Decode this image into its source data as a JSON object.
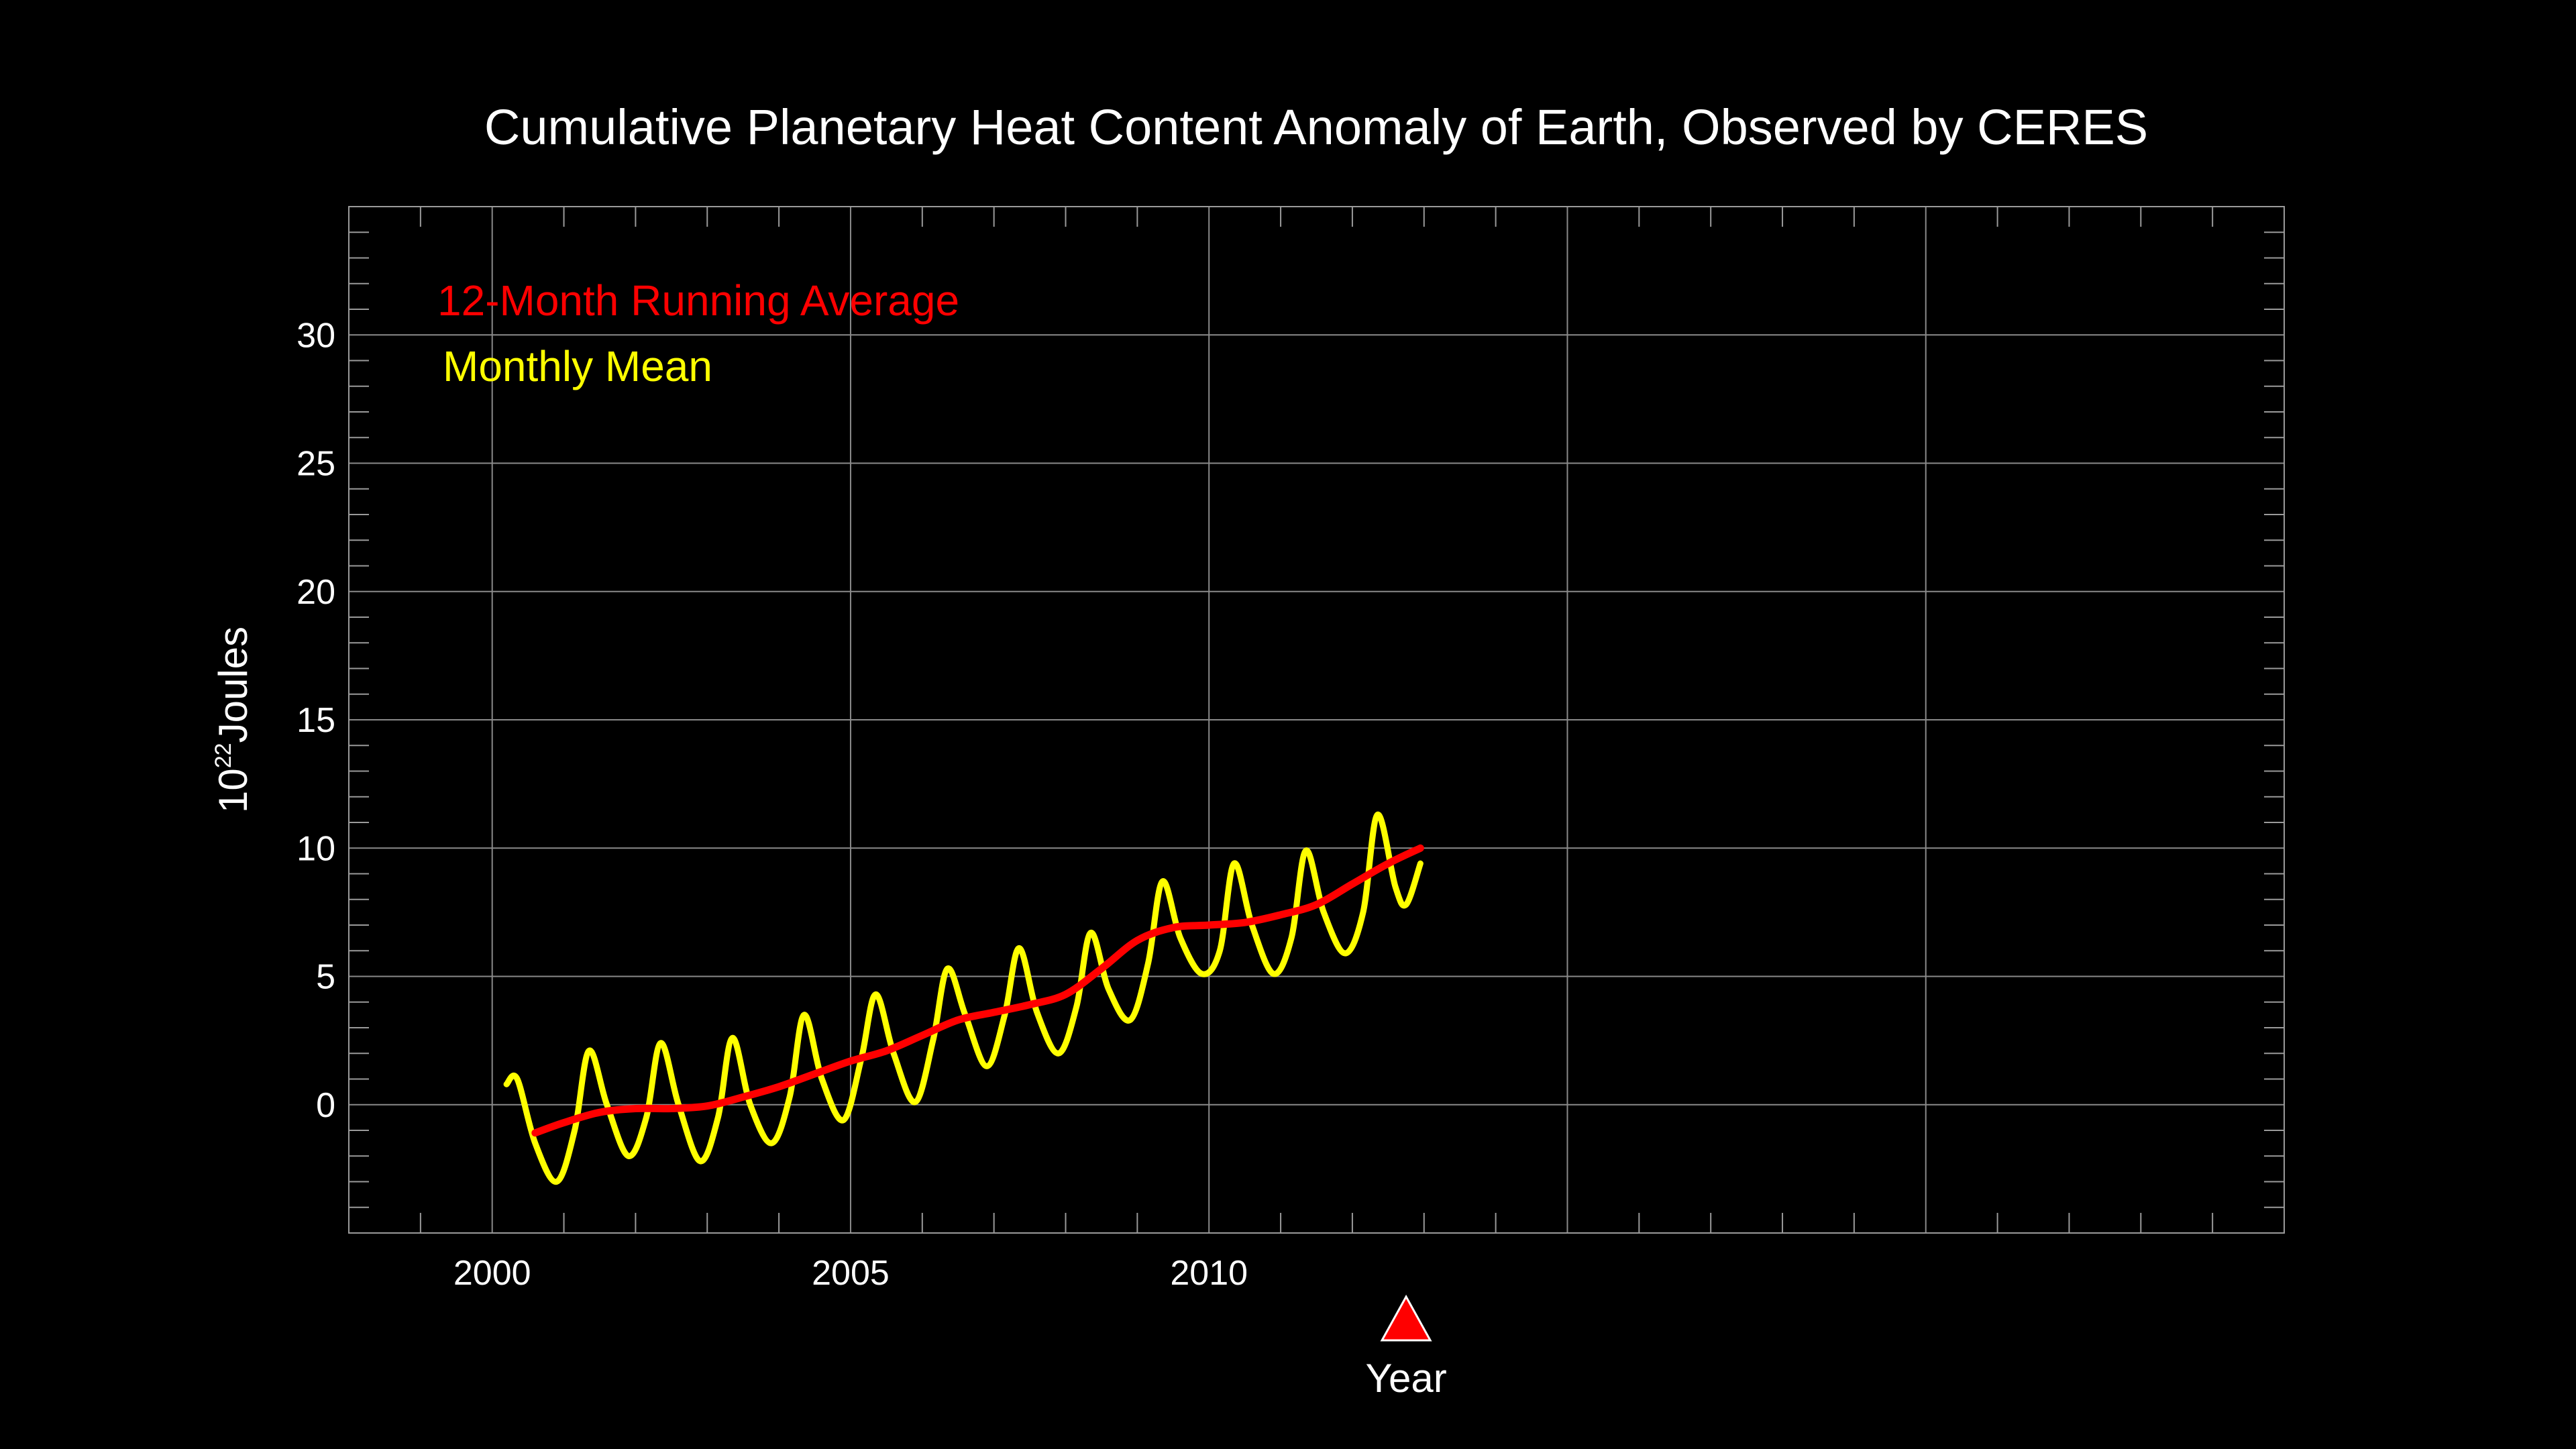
{
  "chart_data": {
    "type": "line",
    "title": "Cumulative Planetary Heat Content Anomaly of Earth, Observed by CERES",
    "xlabel": "Year",
    "ylabel": {
      "base": "10",
      "exponent": "22",
      "unit": "Joules"
    },
    "xlim": [
      1998,
      2025
    ],
    "ylim": [
      -5,
      35
    ],
    "xticks": [
      2000,
      2005,
      2010
    ],
    "yticks": [
      0,
      5,
      10,
      15,
      20,
      25,
      30
    ],
    "grid": true,
    "legend_position": "top-left",
    "marker": {
      "label": "Year",
      "x": 2012.75,
      "color": "#ff0000"
    },
    "series": [
      {
        "name": "12-Month Running Average",
        "color": "#ff0000",
        "x": [
          2000.6,
          2001.0,
          2001.5,
          2002.0,
          2002.5,
          2003.0,
          2003.5,
          2004.0,
          2004.5,
          2005.0,
          2005.5,
          2006.0,
          2006.5,
          2007.0,
          2007.5,
          2008.0,
          2008.5,
          2009.0,
          2009.5,
          2010.0,
          2010.5,
          2011.0,
          2011.5,
          2012.0,
          2012.5,
          2012.95
        ],
        "y": [
          -1.1,
          -0.7,
          -0.3,
          -0.15,
          -0.15,
          -0.05,
          0.3,
          0.7,
          1.2,
          1.7,
          2.1,
          2.7,
          3.3,
          3.6,
          3.9,
          4.3,
          5.3,
          6.4,
          6.9,
          7.0,
          7.1,
          7.4,
          7.8,
          8.6,
          9.4,
          10.0
        ]
      },
      {
        "name": "Monthly Mean",
        "color": "#ffff00",
        "x": [
          2000.2,
          2000.35,
          2000.6,
          2000.9,
          2001.15,
          2001.35,
          2001.6,
          2001.9,
          2002.15,
          2002.35,
          2002.6,
          2002.9,
          2003.15,
          2003.35,
          2003.6,
          2003.9,
          2004.15,
          2004.35,
          2004.6,
          2004.9,
          2005.15,
          2005.35,
          2005.6,
          2005.9,
          2006.15,
          2006.35,
          2006.6,
          2006.9,
          2007.15,
          2007.35,
          2007.6,
          2007.9,
          2008.15,
          2008.35,
          2008.6,
          2008.9,
          2009.15,
          2009.35,
          2009.6,
          2009.9,
          2010.15,
          2010.35,
          2010.6,
          2010.9,
          2011.15,
          2011.35,
          2011.6,
          2011.9,
          2012.15,
          2012.35,
          2012.6,
          2012.75,
          2012.95
        ],
        "y": [
          0.8,
          1.0,
          -1.5,
          -3.0,
          -1.0,
          2.1,
          0.0,
          -2.0,
          -0.5,
          2.4,
          0.0,
          -2.2,
          -0.5,
          2.6,
          0.0,
          -1.5,
          0.3,
          3.5,
          1.0,
          -0.6,
          1.8,
          4.3,
          2.0,
          0.1,
          2.5,
          5.3,
          3.5,
          1.5,
          3.5,
          6.1,
          3.6,
          2.0,
          3.8,
          6.7,
          4.5,
          3.3,
          5.5,
          8.7,
          6.5,
          5.1,
          6.0,
          9.4,
          7.0,
          5.1,
          6.5,
          9.9,
          7.5,
          5.9,
          7.5,
          11.3,
          8.5,
          7.8,
          9.4
        ]
      }
    ]
  }
}
